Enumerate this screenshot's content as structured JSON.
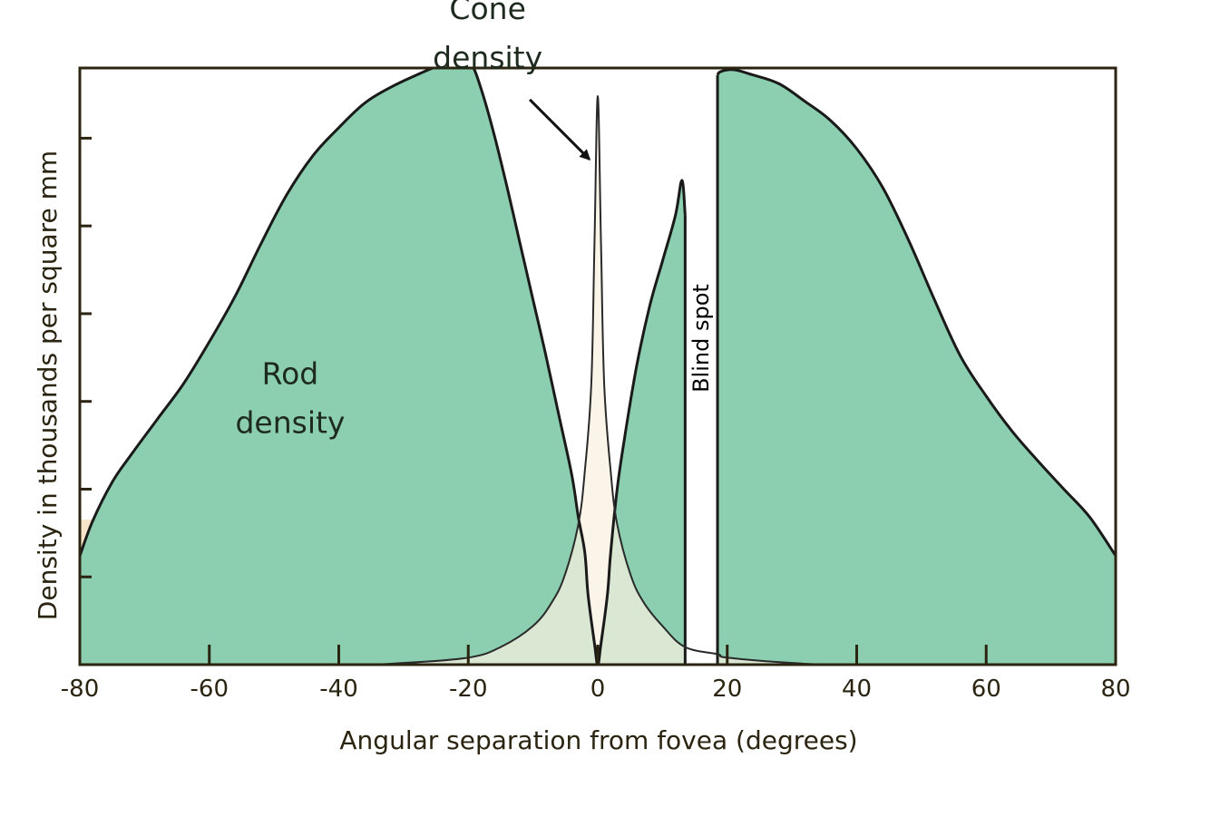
{
  "chart_data": {
    "type": "area",
    "title": "",
    "xlabel": "Angular separation from fovea (degrees)",
    "ylabel": "Density in thousands per square mm",
    "xlim": [
      -80,
      80
    ],
    "ylim": [
      0,
      170
    ],
    "x_ticks": [
      -80,
      -60,
      -40,
      -20,
      0,
      20,
      40,
      60,
      80
    ],
    "x_tick_labels": [
      "-80",
      "-60",
      "-40",
      "-20",
      "0",
      "20",
      "40",
      "60",
      "80"
    ],
    "y_ticks": [
      25,
      50,
      75,
      100,
      125,
      150
    ],
    "grid": false,
    "blind_spot": {
      "range": [
        13.5,
        18.5
      ],
      "label": "Blind spot"
    },
    "series": [
      {
        "name": "Rod density",
        "color": "#8ccfb0",
        "segments": [
          {
            "x": [
              -80,
              -78,
              -75,
              -72,
              -68,
              -64,
              -60,
              -56,
              -52,
              -48,
              -44,
              -40,
              -36,
              -32,
              -28,
              -24,
              -21,
              -19.5,
              -18,
              -16,
              -14,
              -12,
              -10,
              -8,
              -6,
              -4,
              -3,
              -2,
              -1.5,
              -0.5,
              0,
              0.5,
              1.5,
              2,
              3,
              4,
              6,
              8,
              10,
              12,
              13,
              13.5
            ],
            "y": [
              31,
              41,
              52,
              60,
              70,
              80,
              92,
              105,
              120,
              134,
              145,
              153,
              160,
              164.5,
              168,
              171,
              172,
              171,
              164,
              151,
              136,
              120,
              104,
              88,
              71,
              54,
              42,
              32,
              20,
              6,
              0,
              6,
              20,
              32,
              50,
              63,
              85,
              102,
              115,
              128,
              138,
              128
            ]
          },
          {
            "x": [
              18.5,
              19,
              21,
              24,
              28,
              32,
              36,
              40,
              44,
              48,
              52,
              56,
              60,
              64,
              68,
              72,
              76,
              80
            ],
            "y": [
              168,
              169,
              169.5,
              168,
              165.5,
              160.5,
              155,
              147,
              136,
              121,
              104,
              88,
              76.5,
              66.5,
              58,
              50,
              42,
              31
            ]
          }
        ]
      },
      {
        "name": "Cone density",
        "color": "#f8f0e0",
        "x": [
          -80,
          -40,
          -30,
          -20,
          -15,
          -10,
          -7,
          -5,
          -3,
          -2,
          -1,
          -0.5,
          0,
          0.5,
          1,
          2,
          3,
          5,
          7,
          10,
          13.5,
          18.5,
          20,
          30,
          40,
          80
        ],
        "y": [
          0,
          0,
          0.5,
          2,
          5,
          11,
          18,
          26,
          40,
          55,
          80,
          120,
          162,
          120,
          80,
          55,
          40,
          26,
          18,
          11,
          5,
          3,
          2,
          0.5,
          0,
          0
        ]
      }
    ],
    "annotations": [
      {
        "text": "Rod",
        "x": -47.5,
        "y": 80
      },
      {
        "text": "density",
        "x": -47.5,
        "y": 66
      },
      {
        "text": "Cone",
        "x": -17,
        "y": 184
      },
      {
        "text": "density",
        "x": -17,
        "y": 170
      }
    ]
  }
}
